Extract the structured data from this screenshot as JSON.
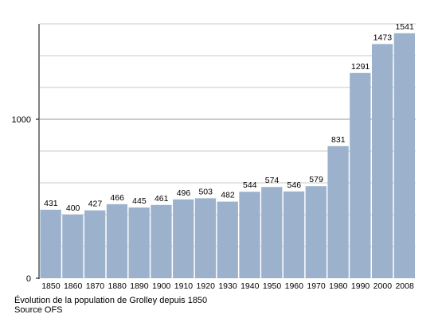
{
  "chart_data": {
    "type": "bar",
    "categories": [
      "1850",
      "1860",
      "1870",
      "1880",
      "1890",
      "1900",
      "1910",
      "1920",
      "1930",
      "1940",
      "1950",
      "1960",
      "1970",
      "1980",
      "1990",
      "2000",
      "2008"
    ],
    "values": [
      431,
      400,
      427,
      466,
      445,
      461,
      496,
      503,
      482,
      544,
      574,
      546,
      579,
      831,
      1291,
      1473,
      1541
    ],
    "title": "",
    "xlabel": "",
    "ylabel": "",
    "ylim": [
      0,
      1600
    ],
    "y_ticks": [
      0,
      1000
    ],
    "grid": true,
    "legend": "none",
    "bar_color": "#9cb2cc",
    "grid_color": "#c8c8c8"
  },
  "caption": {
    "line1": "Évolution de la population de Grolley depuis 1850",
    "line2": "Source OFS"
  }
}
